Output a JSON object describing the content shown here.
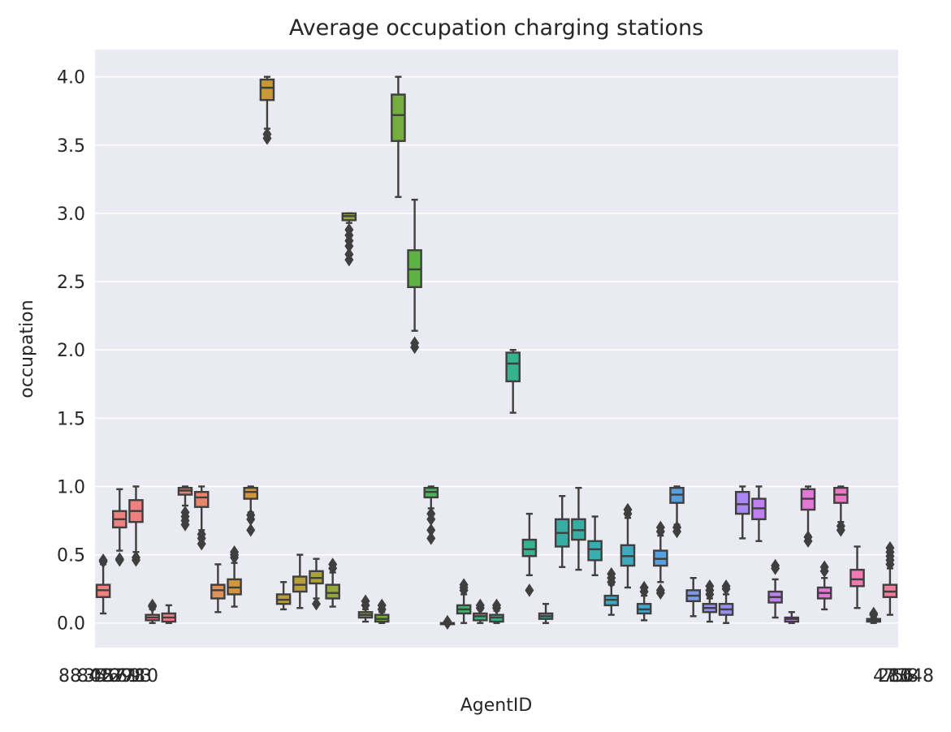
{
  "chart_data": {
    "type": "boxplot",
    "title": "Average occupation charging stations",
    "xlabel": "AgentID",
    "ylabel": "occupation",
    "ylim": [
      -0.18,
      4.2
    ],
    "yticks": [
      0.0,
      0.5,
      1.0,
      1.5,
      2.0,
      2.5,
      3.0,
      3.5,
      4.0
    ],
    "ytick_labels": [
      "0.0",
      "0.5",
      "1.0",
      "1.5",
      "2.0",
      "2.5",
      "3.0",
      "3.5",
      "4.0"
    ],
    "xtick_labels_visible": [
      "88",
      "8048"
    ],
    "xtick_note": "Category tick labels overlap into an illegible cluster at the left and right of the x-axis; only the first and last fragments are readable.",
    "grid": true,
    "legend": "none",
    "colors": [
      "#f08080",
      "#f08080",
      "#f08080",
      "#e8866c",
      "#e0915a",
      "#d4963a",
      "#c99a34",
      "#b99f3a",
      "#a8a43a",
      "#96a83c",
      "#86ab3c",
      "#74ae3e",
      "#5db243",
      "#4cb35a",
      "#3eb56e",
      "#36b57e",
      "#36b28c",
      "#36b09a",
      "#37aea4",
      "#39adb0",
      "#3cabbf",
      "#42a7cd",
      "#57a0e0",
      "#7c98ec",
      "#978ff2",
      "#aa87f2",
      "#bd80ee",
      "#d27be7",
      "#e377d8",
      "#ec77c5",
      "#f07ab2",
      "#f27d9e"
    ],
    "series": [
      {
        "q1": 0.19,
        "median": 0.24,
        "q3": 0.28,
        "whislo": 0.07,
        "whishi": 0.43,
        "fliers": [
          0.45,
          0.46
        ]
      },
      {
        "q1": 0.7,
        "median": 0.76,
        "q3": 0.82,
        "whislo": 0.53,
        "whishi": 0.98,
        "fliers": [
          0.46,
          0.47
        ]
      },
      {
        "q1": 0.74,
        "median": 0.82,
        "q3": 0.9,
        "whislo": 0.52,
        "whishi": 1.0,
        "fliers": [
          0.46,
          0.48
        ]
      },
      {
        "q1": 0.02,
        "median": 0.04,
        "q3": 0.06,
        "whislo": 0.0,
        "whishi": 0.1,
        "fliers": [
          0.12,
          0.13
        ]
      },
      {
        "q1": 0.01,
        "median": 0.04,
        "q3": 0.07,
        "whislo": 0.0,
        "whishi": 0.13,
        "fliers": []
      },
      {
        "q1": 0.94,
        "median": 0.97,
        "q3": 0.99,
        "whislo": 0.86,
        "whishi": 1.0,
        "fliers": [
          0.72,
          0.75,
          0.78,
          0.81
        ]
      },
      {
        "q1": 0.85,
        "median": 0.92,
        "q3": 0.96,
        "whislo": 0.68,
        "whishi": 1.0,
        "fliers": [
          0.58,
          0.62,
          0.65
        ]
      },
      {
        "q1": 0.18,
        "median": 0.24,
        "q3": 0.28,
        "whislo": 0.08,
        "whishi": 0.43,
        "fliers": []
      },
      {
        "q1": 0.21,
        "median": 0.26,
        "q3": 0.32,
        "whislo": 0.12,
        "whishi": 0.44,
        "fliers": [
          0.48,
          0.5,
          0.52
        ]
      },
      {
        "q1": 0.91,
        "median": 0.96,
        "q3": 0.99,
        "whislo": 0.81,
        "whishi": 1.0,
        "fliers": [
          0.68,
          0.76,
          0.79
        ]
      },
      {
        "q1": 3.83,
        "median": 3.92,
        "q3": 3.98,
        "whislo": 3.62,
        "whishi": 4.0,
        "fliers": [
          3.55,
          3.58
        ]
      },
      {
        "q1": 0.14,
        "median": 0.17,
        "q3": 0.21,
        "whislo": 0.1,
        "whishi": 0.3,
        "fliers": []
      },
      {
        "q1": 0.23,
        "median": 0.28,
        "q3": 0.34,
        "whislo": 0.11,
        "whishi": 0.5,
        "fliers": []
      },
      {
        "q1": 0.29,
        "median": 0.33,
        "q3": 0.38,
        "whislo": 0.18,
        "whishi": 0.47,
        "fliers": [
          0.14
        ]
      },
      {
        "q1": 0.18,
        "median": 0.22,
        "q3": 0.28,
        "whislo": 0.12,
        "whishi": 0.37,
        "fliers": [
          0.4,
          0.43
        ]
      },
      {
        "q1": 2.95,
        "median": 2.98,
        "q3": 3.0,
        "whislo": 2.93,
        "whishi": 3.0,
        "fliers": [
          2.66,
          2.7,
          2.76,
          2.8,
          2.84,
          2.88
        ]
      },
      {
        "q1": 0.04,
        "median": 0.06,
        "q3": 0.08,
        "whislo": 0.01,
        "whishi": 0.1,
        "fliers": [
          0.13,
          0.16
        ]
      },
      {
        "q1": 0.01,
        "median": 0.03,
        "q3": 0.06,
        "whislo": 0.0,
        "whishi": 0.08,
        "fliers": [
          0.1,
          0.13
        ]
      },
      {
        "q1": 3.53,
        "median": 3.72,
        "q3": 3.87,
        "whislo": 3.12,
        "whishi": 4.0,
        "fliers": []
      },
      {
        "q1": 2.46,
        "median": 2.59,
        "q3": 2.73,
        "whislo": 2.14,
        "whishi": 3.1,
        "fliers": [
          2.02,
          2.05
        ]
      },
      {
        "q1": 0.92,
        "median": 0.96,
        "q3": 0.99,
        "whislo": 0.84,
        "whishi": 1.0,
        "fliers": [
          0.62,
          0.68,
          0.76,
          0.8
        ]
      },
      {
        "q1": 0.0,
        "median": 0.0,
        "q3": 0.0,
        "whislo": 0.0,
        "whishi": 0.0,
        "fliers": [
          0.0,
          0.01
        ]
      },
      {
        "q1": 0.07,
        "median": 0.1,
        "q3": 0.13,
        "whislo": 0.0,
        "whishi": 0.21,
        "fliers": [
          0.24,
          0.26,
          0.28
        ]
      },
      {
        "q1": 0.02,
        "median": 0.05,
        "q3": 0.07,
        "whislo": 0.0,
        "whishi": 0.1,
        "fliers": [
          0.11,
          0.13
        ]
      },
      {
        "q1": 0.01,
        "median": 0.04,
        "q3": 0.06,
        "whislo": 0.0,
        "whishi": 0.09,
        "fliers": [
          0.11,
          0.13
        ]
      },
      {
        "q1": 1.77,
        "median": 1.9,
        "q3": 1.98,
        "whislo": 1.54,
        "whishi": 2.0,
        "fliers": []
      },
      {
        "q1": 0.49,
        "median": 0.54,
        "q3": 0.61,
        "whislo": 0.35,
        "whishi": 0.8,
        "fliers": [
          0.24
        ]
      },
      {
        "q1": 0.03,
        "median": 0.05,
        "q3": 0.07,
        "whislo": 0.0,
        "whishi": 0.14,
        "fliers": []
      },
      {
        "q1": 0.56,
        "median": 0.66,
        "q3": 0.76,
        "whislo": 0.41,
        "whishi": 0.93,
        "fliers": []
      },
      {
        "q1": 0.61,
        "median": 0.68,
        "q3": 0.76,
        "whislo": 0.39,
        "whishi": 0.99,
        "fliers": []
      },
      {
        "q1": 0.46,
        "median": 0.54,
        "q3": 0.6,
        "whislo": 0.35,
        "whishi": 0.78,
        "fliers": []
      },
      {
        "q1": 0.13,
        "median": 0.17,
        "q3": 0.2,
        "whislo": 0.06,
        "whishi": 0.28,
        "fliers": [
          0.3,
          0.33,
          0.36
        ]
      },
      {
        "q1": 0.42,
        "median": 0.49,
        "q3": 0.57,
        "whislo": 0.26,
        "whishi": 0.77,
        "fliers": [
          0.8,
          0.83
        ]
      },
      {
        "q1": 0.07,
        "median": 0.1,
        "q3": 0.14,
        "whislo": 0.02,
        "whishi": 0.2,
        "fliers": [
          0.23,
          0.26
        ]
      },
      {
        "q1": 0.42,
        "median": 0.47,
        "q3": 0.53,
        "whislo": 0.3,
        "whishi": 0.64,
        "fliers": [
          0.22,
          0.24,
          0.67,
          0.7
        ]
      },
      {
        "q1": 0.88,
        "median": 0.94,
        "q3": 0.99,
        "whislo": 0.72,
        "whishi": 1.0,
        "fliers": [
          0.67,
          0.7
        ]
      },
      {
        "q1": 0.16,
        "median": 0.2,
        "q3": 0.24,
        "whislo": 0.05,
        "whishi": 0.33,
        "fliers": []
      },
      {
        "q1": 0.08,
        "median": 0.11,
        "q3": 0.14,
        "whislo": 0.01,
        "whishi": 0.18,
        "fliers": [
          0.21,
          0.24,
          0.27
        ]
      },
      {
        "q1": 0.06,
        "median": 0.1,
        "q3": 0.14,
        "whislo": 0.0,
        "whishi": 0.21,
        "fliers": [
          0.25,
          0.27
        ]
      },
      {
        "q1": 0.8,
        "median": 0.87,
        "q3": 0.96,
        "whislo": 0.62,
        "whishi": 1.0,
        "fliers": []
      },
      {
        "q1": 0.76,
        "median": 0.84,
        "q3": 0.91,
        "whislo": 0.6,
        "whishi": 1.0,
        "fliers": []
      },
      {
        "q1": 0.15,
        "median": 0.19,
        "q3": 0.23,
        "whislo": 0.04,
        "whishi": 0.32,
        "fliers": [
          0.4,
          0.42
        ]
      },
      {
        "q1": 0.01,
        "median": 0.03,
        "q3": 0.04,
        "whislo": 0.0,
        "whishi": 0.08,
        "fliers": []
      },
      {
        "q1": 0.83,
        "median": 0.91,
        "q3": 0.98,
        "whislo": 0.64,
        "whishi": 1.0,
        "fliers": [
          0.6,
          0.63
        ]
      },
      {
        "q1": 0.18,
        "median": 0.22,
        "q3": 0.26,
        "whislo": 0.1,
        "whishi": 0.33,
        "fliers": [
          0.38,
          0.41
        ]
      },
      {
        "q1": 0.88,
        "median": 0.94,
        "q3": 0.99,
        "whislo": 0.74,
        "whishi": 1.0,
        "fliers": [
          0.68,
          0.71
        ]
      },
      {
        "q1": 0.27,
        "median": 0.32,
        "q3": 0.39,
        "whislo": 0.11,
        "whishi": 0.56,
        "fliers": []
      },
      {
        "q1": 0.01,
        "median": 0.02,
        "q3": 0.03,
        "whislo": 0.0,
        "whishi": 0.04,
        "fliers": [
          0.06,
          0.07
        ]
      },
      {
        "q1": 0.19,
        "median": 0.23,
        "q3": 0.28,
        "whislo": 0.06,
        "whishi": 0.4,
        "fliers": [
          0.43,
          0.46,
          0.49,
          0.52,
          0.55
        ]
      }
    ]
  }
}
